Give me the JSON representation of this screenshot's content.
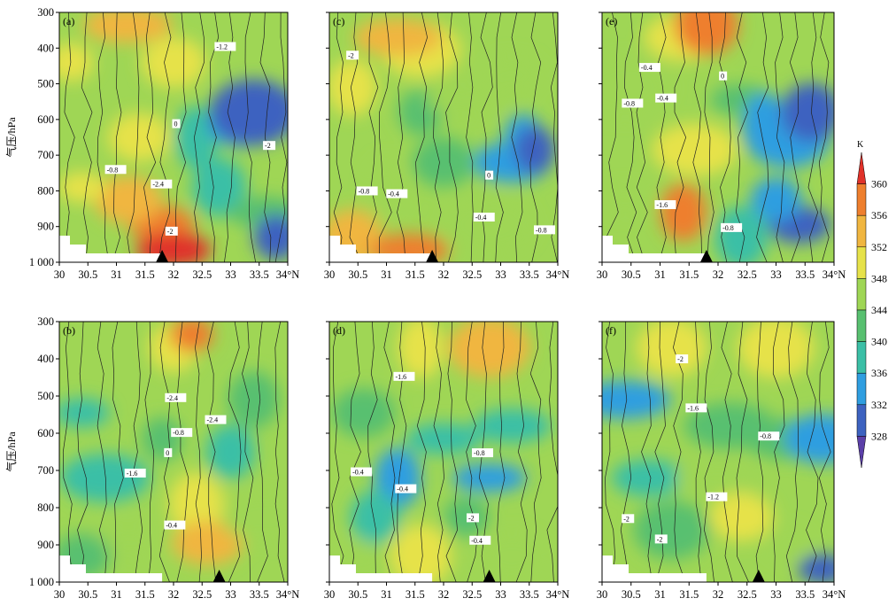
{
  "chart_data": {
    "type": "heatmap",
    "panels": [
      {
        "label": "(a)",
        "marker_x": 31.8
      },
      {
        "label": "(b)",
        "marker_x": 32.8
      },
      {
        "label": "(c)",
        "marker_x": 31.8
      },
      {
        "label": "(d)",
        "marker_x": 32.8
      },
      {
        "label": "(e)",
        "marker_x": 31.8
      },
      {
        "label": "(f)",
        "marker_x": 32.7
      }
    ],
    "ylabel": "气压/hPa",
    "x_ticks": [
      "30",
      "30.5",
      "31",
      "31.5",
      "32",
      "32.5",
      "33",
      "33.5",
      "34°N"
    ],
    "y_ticks": [
      "300",
      "400",
      "500",
      "600",
      "700",
      "800",
      "900",
      "1 000"
    ],
    "xlim": [
      30,
      34
    ],
    "ylim": [
      1000,
      300
    ],
    "colorbar": {
      "unit": "K",
      "levels": [
        328,
        332,
        336,
        340,
        344,
        348,
        352,
        356,
        360
      ],
      "colors": [
        "#5b3fa8",
        "#3d62c0",
        "#2f9ee0",
        "#3bbfa6",
        "#58c070",
        "#9fd655",
        "#e6e24a",
        "#f0b640",
        "#ee7f2e",
        "#e0322a"
      ]
    },
    "contour_labels": [
      "-0.4",
      "-0.8",
      "-1.2",
      "-1.6",
      "-2",
      "-2.4",
      "0"
    ]
  }
}
